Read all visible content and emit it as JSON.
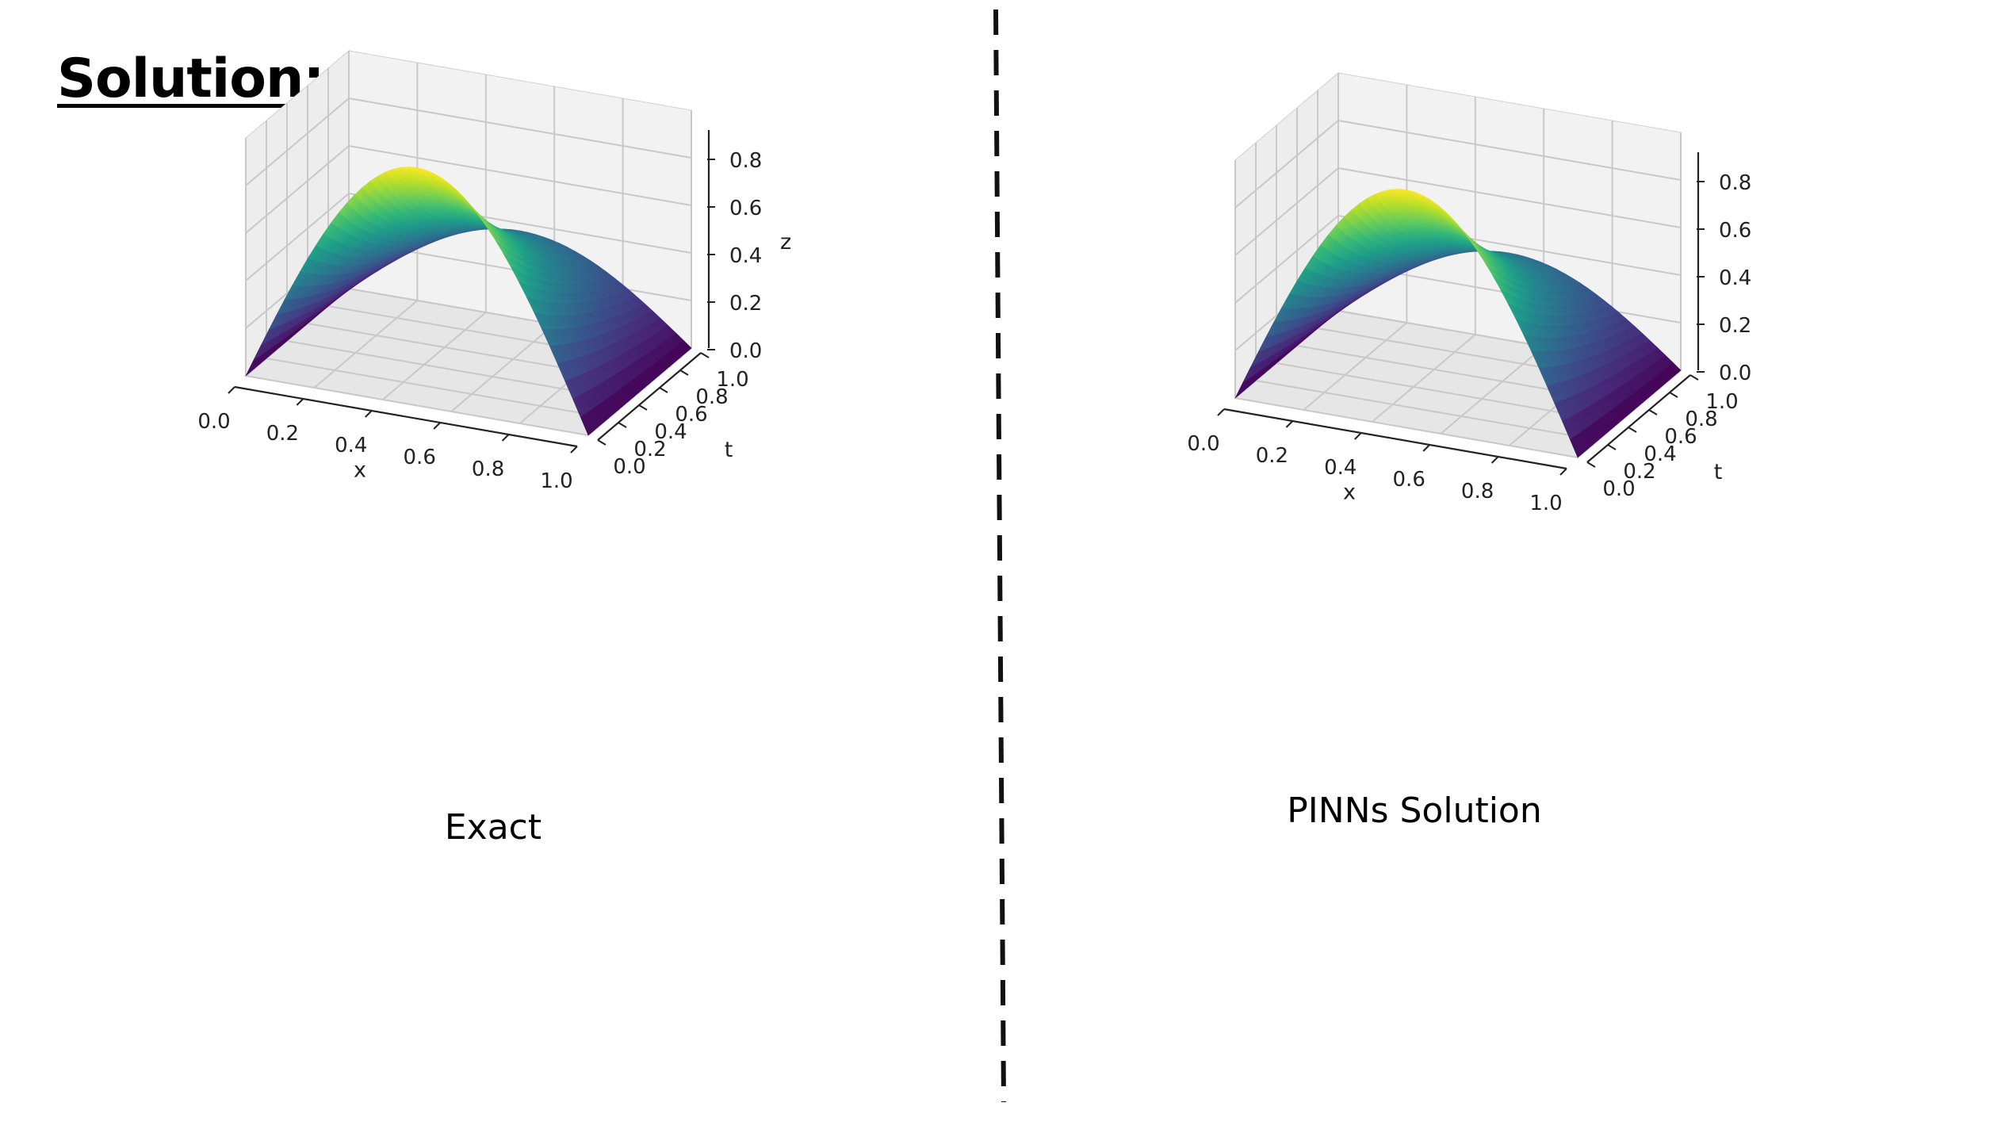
{
  "slide": {
    "title": "Solution:",
    "divider": "dashed-vertical"
  },
  "colormap": "viridis",
  "colors": {
    "viridis": [
      "#440154",
      "#482878",
      "#3e4989",
      "#31688e",
      "#26828e",
      "#1f9e89",
      "#35b779",
      "#6ece58",
      "#b5de2b",
      "#fde725"
    ],
    "pane": "#f2f2f2",
    "grid": "#c8c8c8",
    "axis": "#222222",
    "divider": "#111111"
  },
  "chart_data": [
    {
      "type": "surface",
      "caption": "Exact",
      "function": "u(x,t) = sin(pi*x) * exp(-t)",
      "xlabel": "x",
      "ylabel": "t",
      "zlabel": "z",
      "xlim": [
        0,
        1
      ],
      "ylim": [
        0,
        1
      ],
      "zlim": [
        0,
        1
      ],
      "xticks": [
        "0.0",
        "0.2",
        "0.4",
        "0.6",
        "0.8",
        "1.0"
      ],
      "yticks": [
        "0.0",
        "0.2",
        "0.4",
        "0.6",
        "0.8",
        "1.0"
      ],
      "zticks": [
        "0.0",
        "0.2",
        "0.4",
        "0.6",
        "0.8"
      ],
      "peak": {
        "x": 0.5,
        "t": 0,
        "value": 1.0
      },
      "grid": true
    },
    {
      "type": "surface",
      "caption": "PINNs Solution",
      "function": "u(x,t) = sin(pi*x) * exp(-t)",
      "xlabel": "x",
      "ylabel": "t",
      "zlabel": "",
      "xlim": [
        0,
        1
      ],
      "ylim": [
        0,
        1
      ],
      "zlim": [
        0,
        1
      ],
      "xticks": [
        "0.0",
        "0.2",
        "0.4",
        "0.6",
        "0.8",
        "1.0"
      ],
      "yticks": [
        "0.0",
        "0.2",
        "0.4",
        "0.6",
        "0.8",
        "1.0"
      ],
      "zticks": [
        "0.0",
        "0.2",
        "0.4",
        "0.6",
        "0.8"
      ],
      "peak": {
        "x": 0.5,
        "t": 0,
        "value": 1.0
      },
      "grid": true
    }
  ]
}
